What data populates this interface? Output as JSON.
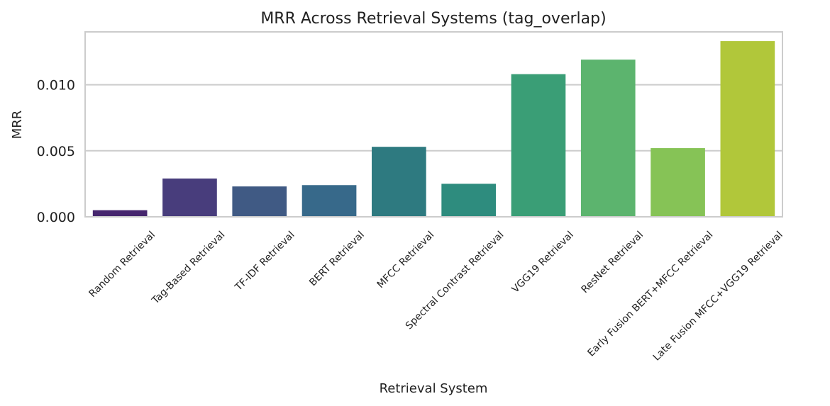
{
  "chart_data": {
    "type": "bar",
    "title": "MRR Across Retrieval Systems (tag_overlap)",
    "xlabel": "Retrieval System",
    "ylabel": "MRR",
    "ylim": [
      0,
      0.014
    ],
    "yticks": [
      "0.000",
      "0.005",
      "0.010"
    ],
    "ytick_values": [
      0,
      0.005,
      0.01
    ],
    "grid": "horizontal",
    "categories": [
      "Random Retrieval",
      "Tag-Based Retrieval",
      "TF-IDF Retrieval",
      "BERT Retrieval",
      "MFCC Retrieval",
      "Spectral Contrast Retrieval",
      "VGG19 Retrieval",
      "ResNet Retrieval",
      "Early Fusion BERT+MFCC Retrieval",
      "Late Fusion MFCC+VGG19 Retrieval"
    ],
    "values": [
      0.0005,
      0.0029,
      0.0023,
      0.0024,
      0.0053,
      0.0025,
      0.0108,
      0.0119,
      0.0052,
      0.0133
    ],
    "colors": [
      "#46266e",
      "#483d7c",
      "#405a84",
      "#37698a",
      "#2e7a80",
      "#2e8c7e",
      "#3a9e76",
      "#5cb46e",
      "#86c356",
      "#b1c73a"
    ]
  }
}
